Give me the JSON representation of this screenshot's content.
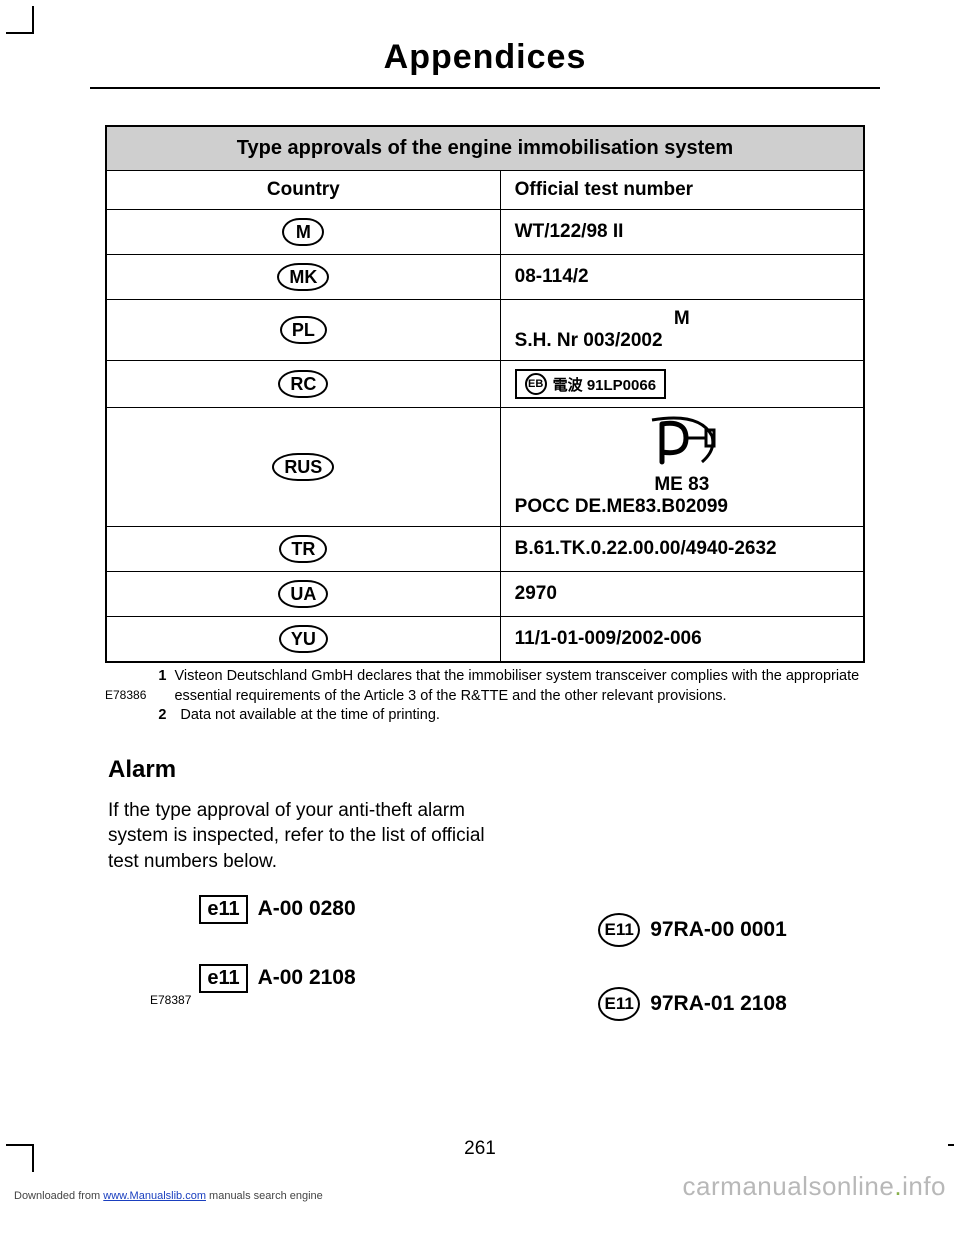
{
  "page": {
    "title": "Appendices",
    "number": "261"
  },
  "table": {
    "header": "Type approvals of the engine immobilisation system",
    "col1": "Country",
    "col2": "Official test number",
    "rows": [
      {
        "code": "M",
        "oval_width": 42,
        "value_type": "text",
        "value": "WT/122/98 II"
      },
      {
        "code": "MK",
        "oval_width": 50,
        "value_type": "text",
        "value": "08-114/2"
      },
      {
        "code": "PL",
        "oval_width": 46,
        "value_type": "pl",
        "line1": "M",
        "line2": "S.H. Nr 003/2002"
      },
      {
        "code": "RC",
        "oval_width": 48,
        "value_type": "rc",
        "badge_text": "電波 91LP0066"
      },
      {
        "code": "RUS",
        "oval_width": 56,
        "value_type": "rus",
        "line1": "ME 83",
        "line2": "POCC DE.ME83.B02099"
      },
      {
        "code": "TR",
        "oval_width": 48,
        "value_type": "text",
        "value": "B.61.TK.0.22.00.00/4940-2632"
      },
      {
        "code": "UA",
        "oval_width": 48,
        "value_type": "text",
        "value": "2970"
      },
      {
        "code": "YU",
        "oval_width": 48,
        "value_type": "text",
        "value": "11/1-01-009/2002-006"
      }
    ],
    "footnote_ref": "E78386",
    "footnotes": [
      "Visteon Deutschland GmbH declares that the immobiliser system transceiver complies with the appropriate essential requirements of the Article 3 of the R&TTE and the other relevant provisions.",
      "Data not available at the time of printing."
    ]
  },
  "alarm": {
    "heading": "Alarm",
    "paragraph": "If the type approval of your anti-theft alarm system is inspected, refer to the list of official test numbers below.",
    "ref": "E78387",
    "left": [
      {
        "mark": "e11",
        "code": "A-00  0280"
      },
      {
        "mark": "e11",
        "code": "A-00  2108"
      }
    ],
    "right": [
      {
        "mark": "E11",
        "code": "97RA-00  0001"
      },
      {
        "mark": "E11",
        "code": "97RA-01  2108"
      }
    ]
  },
  "footer": {
    "download_prefix": "Downloaded from ",
    "download_link": "www.Manualslib.com",
    "download_suffix": " manuals search engine",
    "watermark_a": "carmanualsonline",
    "watermark_b": "info"
  },
  "colors": {
    "header_bg": "#cfcfcf",
    "link": "#1a3fbf",
    "watermark": "#b8b8b8",
    "watermark_dot": "#88b04b"
  }
}
